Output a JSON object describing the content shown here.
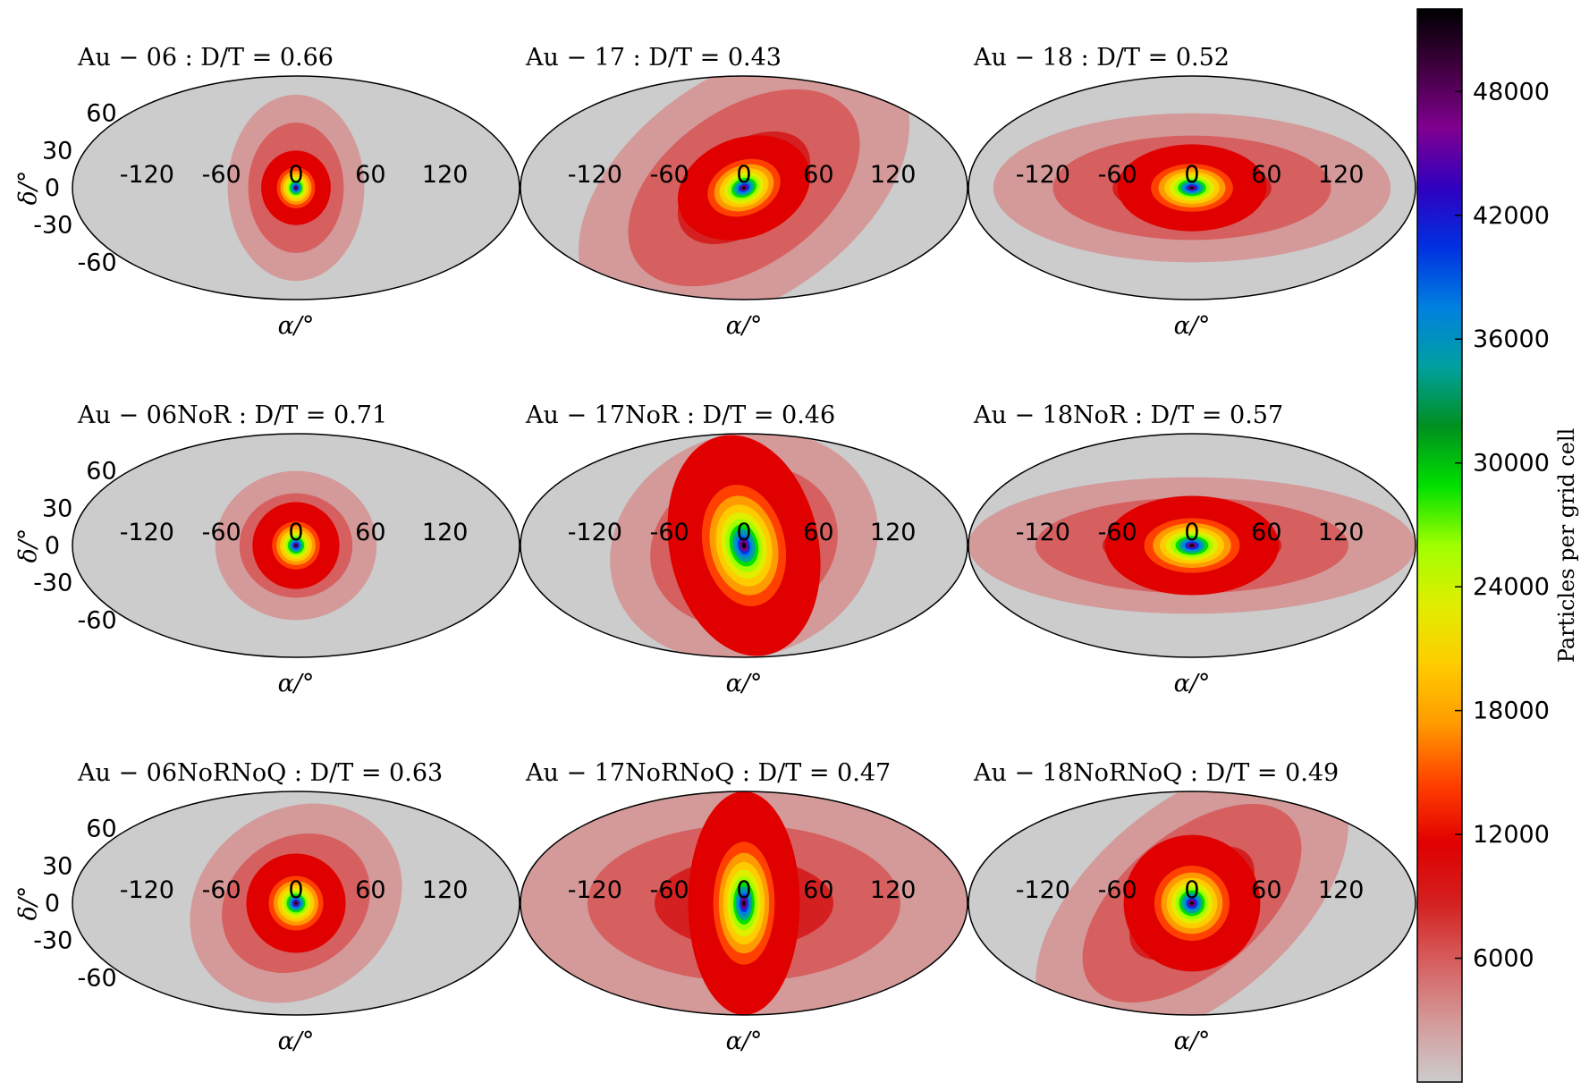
{
  "figure": {
    "colorbar": {
      "label": "Particles per grid cell",
      "ticks": [
        "6000",
        "12000",
        "18000",
        "24000",
        "30000",
        "36000",
        "42000",
        "48000"
      ],
      "tick_values": [
        6000,
        12000,
        18000,
        24000,
        30000,
        36000,
        42000,
        48000
      ],
      "range": [
        0,
        52000
      ],
      "colormap": [
        "#cccccc",
        "#d49a9a",
        "#d66060",
        "#d42020",
        "#e00000",
        "#ff4000",
        "#ff9a00",
        "#ffcc00",
        "#e0ee00",
        "#a0ff00",
        "#00e000",
        "#009020",
        "#00a0a0",
        "#0080e0",
        "#0030e0",
        "#3000c0",
        "#800090",
        "#400040",
        "#000000"
      ]
    }
  },
  "chart_data": [
    {
      "type": "heatmap",
      "projection": "mollweide",
      "title": "Au − 06 : D/T = 0.66",
      "xlabel": "α/°",
      "ylabel": "δ/°",
      "xticks": [
        "-120",
        "-60",
        "0",
        "60",
        "120"
      ],
      "yticks": [
        "60",
        "30",
        "0",
        "-30",
        "-60"
      ],
      "peak": [
        0,
        0
      ],
      "core_extent_deg": [
        28,
        30
      ],
      "halo_extent_deg": [
        55,
        75
      ],
      "halo_tilt_deg": 0
    },
    {
      "type": "heatmap",
      "projection": "mollweide",
      "title": "Au − 17 : D/T = 0.43",
      "xlabel": "α/°",
      "ylabel": "",
      "xticks": [
        "-120",
        "-60",
        "0",
        "60",
        "120"
      ],
      "yticks": [],
      "peak": [
        0,
        0
      ],
      "core_extent_deg": [
        55,
        40
      ],
      "halo_extent_deg": [
        150,
        90
      ],
      "halo_tilt_deg": -35
    },
    {
      "type": "heatmap",
      "projection": "mollweide",
      "title": "Au − 18 : D/T = 0.52",
      "xlabel": "α/°",
      "ylabel": "",
      "xticks": [
        "-120",
        "-60",
        "0",
        "60",
        "120"
      ],
      "yticks": [],
      "peak": [
        0,
        0
      ],
      "core_extent_deg": [
        60,
        35
      ],
      "halo_extent_deg": [
        160,
        60
      ],
      "halo_tilt_deg": 0
    },
    {
      "type": "heatmap",
      "projection": "mollweide",
      "title": "Au − 06NoR : D/T = 0.71",
      "xlabel": "α/°",
      "ylabel": "δ/°",
      "xticks": [
        "-120",
        "-60",
        "0",
        "60",
        "120"
      ],
      "yticks": [
        "60",
        "30",
        "0",
        "-30",
        "-60"
      ],
      "peak": [
        0,
        0
      ],
      "core_extent_deg": [
        35,
        35
      ],
      "halo_extent_deg": [
        65,
        60
      ],
      "halo_tilt_deg": 0
    },
    {
      "type": "heatmap",
      "projection": "mollweide",
      "title": "Au − 17NoR : D/T = 0.46",
      "xlabel": "α/°",
      "ylabel": "",
      "xticks": [
        "-120",
        "-60",
        "0",
        "60",
        "120"
      ],
      "yticks": [],
      "peak": [
        0,
        0
      ],
      "core_extent_deg": [
        60,
        90
      ],
      "halo_extent_deg": [
        110,
        90
      ],
      "halo_tilt_deg": -20
    },
    {
      "type": "heatmap",
      "projection": "mollweide",
      "title": "Au − 18NoR : D/T = 0.57",
      "xlabel": "α/°",
      "ylabel": "",
      "xticks": [
        "-120",
        "-60",
        "0",
        "60",
        "120"
      ],
      "yticks": [],
      "peak": [
        0,
        0
      ],
      "core_extent_deg": [
        70,
        40
      ],
      "halo_extent_deg": [
        180,
        55
      ],
      "halo_tilt_deg": 0
    },
    {
      "type": "heatmap",
      "projection": "mollweide",
      "title": "Au − 06NoRNoQ : D/T = 0.63",
      "xlabel": "α/°",
      "ylabel": "δ/°",
      "xticks": [
        "-120",
        "-60",
        "0",
        "60",
        "120"
      ],
      "yticks": [
        "60",
        "30",
        "0",
        "-30",
        "-60"
      ],
      "peak": [
        0,
        0
      ],
      "core_extent_deg": [
        40,
        40
      ],
      "halo_extent_deg": [
        90,
        75
      ],
      "halo_tilt_deg": -35
    },
    {
      "type": "heatmap",
      "projection": "mollweide",
      "title": "Au − 17NoRNoQ : D/T = 0.47",
      "xlabel": "α/°",
      "ylabel": "",
      "xticks": [
        "-120",
        "-60",
        "0",
        "60",
        "120"
      ],
      "yticks": [],
      "peak": [
        0,
        0
      ],
      "core_extent_deg": [
        45,
        90
      ],
      "halo_extent_deg": [
        180,
        90
      ],
      "halo_tilt_deg": 0
    },
    {
      "type": "heatmap",
      "projection": "mollweide",
      "title": "Au − 18NoRNoQ : D/T = 0.49",
      "xlabel": "α/°",
      "ylabel": "",
      "xticks": [
        "-120",
        "-60",
        "0",
        "60",
        "120"
      ],
      "yticks": [],
      "peak": [
        0,
        0
      ],
      "core_extent_deg": [
        55,
        55
      ],
      "halo_extent_deg": [
        150,
        80
      ],
      "halo_tilt_deg": -40
    }
  ]
}
